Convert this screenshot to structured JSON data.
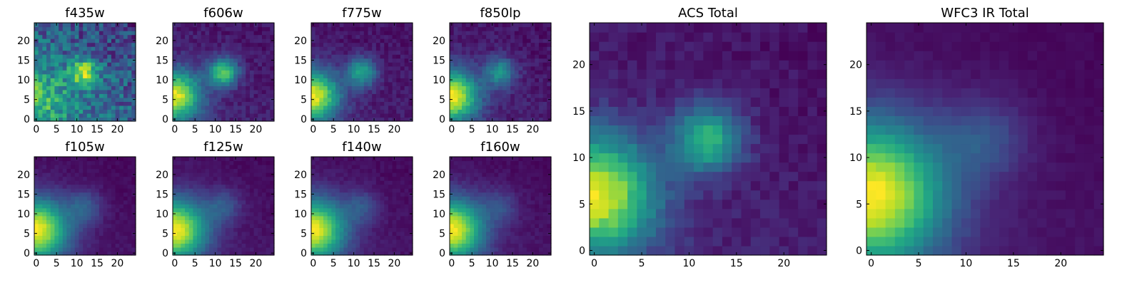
{
  "chart_data": [
    {
      "type": "heatmap",
      "title": "f435w",
      "xlim": [
        0,
        24
      ],
      "ylim": [
        0,
        24
      ],
      "xticks": [
        "0",
        "5",
        "10",
        "15",
        "20"
      ],
      "yticks": [
        "0",
        "5",
        "10",
        "15",
        "20"
      ],
      "colormap": "viridis",
      "blobs": [
        {
          "x": 12,
          "y": 12,
          "amp": 0.55,
          "sigma": 2.5
        },
        {
          "x": 0,
          "y": 6,
          "amp": 0.3,
          "sigma": 6
        }
      ],
      "background": 0.45,
      "noise": 0.18,
      "seed": 11
    },
    {
      "type": "heatmap",
      "title": "f606w",
      "xlim": [
        0,
        24
      ],
      "ylim": [
        0,
        24
      ],
      "xticks": [
        "0",
        "5",
        "10",
        "15",
        "20"
      ],
      "yticks": [
        "0",
        "5",
        "10",
        "15",
        "20"
      ],
      "colormap": "viridis",
      "blobs": [
        {
          "x": 0,
          "y": 6,
          "amp": 0.9,
          "sigma": 4.5
        },
        {
          "x": 12,
          "y": 12,
          "amp": 0.7,
          "sigma": 2.5
        }
      ],
      "background": 0.12,
      "noise": 0.06,
      "seed": 22
    },
    {
      "type": "heatmap",
      "title": "f775w",
      "xlim": [
        0,
        24
      ],
      "ylim": [
        0,
        24
      ],
      "xticks": [
        "0",
        "5",
        "10",
        "15",
        "20"
      ],
      "yticks": [
        "0",
        "5",
        "10",
        "15",
        "20"
      ],
      "colormap": "viridis",
      "blobs": [
        {
          "x": 0,
          "y": 6,
          "amp": 0.95,
          "sigma": 4.5
        },
        {
          "x": 12,
          "y": 12,
          "amp": 0.55,
          "sigma": 2.6
        }
      ],
      "background": 0.12,
      "noise": 0.06,
      "seed": 33
    },
    {
      "type": "heatmap",
      "title": "f850lp",
      "xlim": [
        0,
        24
      ],
      "ylim": [
        0,
        24
      ],
      "xticks": [
        "0",
        "5",
        "10",
        "15",
        "20"
      ],
      "yticks": [
        "0",
        "5",
        "10",
        "15",
        "20"
      ],
      "colormap": "viridis",
      "blobs": [
        {
          "x": 0,
          "y": 6,
          "amp": 0.95,
          "sigma": 4.5
        },
        {
          "x": 12,
          "y": 12,
          "amp": 0.45,
          "sigma": 2.6
        }
      ],
      "background": 0.12,
      "noise": 0.06,
      "seed": 44
    },
    {
      "type": "heatmap",
      "title": "f105w",
      "xlim": [
        0,
        24
      ],
      "ylim": [
        0,
        24
      ],
      "xticks": [
        "0",
        "5",
        "10",
        "15",
        "20"
      ],
      "yticks": [
        "0",
        "5",
        "10",
        "15",
        "20"
      ],
      "colormap": "viridis",
      "blobs": [
        {
          "x": 0,
          "y": 6,
          "amp": 0.95,
          "sigma": 5.5
        },
        {
          "x": 12,
          "y": 12,
          "amp": 0.25,
          "sigma": 3
        }
      ],
      "background": 0.1,
      "noise": 0.03,
      "seed": 55
    },
    {
      "type": "heatmap",
      "title": "f125w",
      "xlim": [
        0,
        24
      ],
      "ylim": [
        0,
        24
      ],
      "xticks": [
        "0",
        "5",
        "10",
        "15",
        "20"
      ],
      "yticks": [
        "0",
        "5",
        "10",
        "15",
        "20"
      ],
      "colormap": "viridis",
      "blobs": [
        {
          "x": 0,
          "y": 6,
          "amp": 0.95,
          "sigma": 5.5
        },
        {
          "x": 12,
          "y": 12,
          "amp": 0.22,
          "sigma": 3
        }
      ],
      "background": 0.1,
      "noise": 0.03,
      "seed": 66
    },
    {
      "type": "heatmap",
      "title": "f140w",
      "xlim": [
        0,
        24
      ],
      "ylim": [
        0,
        24
      ],
      "xticks": [
        "0",
        "5",
        "10",
        "15",
        "20"
      ],
      "yticks": [
        "0",
        "5",
        "10",
        "15",
        "20"
      ],
      "colormap": "viridis",
      "blobs": [
        {
          "x": 0,
          "y": 6,
          "amp": 0.95,
          "sigma": 5.5
        },
        {
          "x": 12,
          "y": 12,
          "amp": 0.2,
          "sigma": 3
        }
      ],
      "background": 0.1,
      "noise": 0.03,
      "seed": 77
    },
    {
      "type": "heatmap",
      "title": "f160w",
      "xlim": [
        0,
        24
      ],
      "ylim": [
        0,
        24
      ],
      "xticks": [
        "0",
        "5",
        "10",
        "15",
        "20"
      ],
      "yticks": [
        "0",
        "5",
        "10",
        "15",
        "20"
      ],
      "colormap": "viridis",
      "blobs": [
        {
          "x": 0,
          "y": 6,
          "amp": 0.95,
          "sigma": 5.5
        },
        {
          "x": 12,
          "y": 12,
          "amp": 0.18,
          "sigma": 3
        }
      ],
      "background": 0.1,
      "noise": 0.03,
      "seed": 88
    },
    {
      "type": "heatmap",
      "title": "ACS Total",
      "xlim": [
        0,
        24
      ],
      "ylim": [
        0,
        24
      ],
      "xticks": [
        "0",
        "5",
        "10",
        "15",
        "20"
      ],
      "yticks": [
        "0",
        "5",
        "10",
        "15",
        "20"
      ],
      "colormap": "viridis",
      "blobs": [
        {
          "x": 0,
          "y": 6,
          "amp": 0.9,
          "sigma": 4.5
        },
        {
          "x": 12,
          "y": 12,
          "amp": 0.6,
          "sigma": 2.5
        }
      ],
      "background": 0.12,
      "noise": 0.05,
      "seed": 99
    },
    {
      "type": "heatmap",
      "title": "WFC3 IR Total",
      "xlim": [
        0,
        24
      ],
      "ylim": [
        0,
        24
      ],
      "xticks": [
        "0",
        "5",
        "10",
        "15",
        "20"
      ],
      "yticks": [
        "0",
        "5",
        "10",
        "15",
        "20"
      ],
      "colormap": "viridis",
      "blobs": [
        {
          "x": 0,
          "y": 6,
          "amp": 0.95,
          "sigma": 5.5
        },
        {
          "x": 12,
          "y": 12,
          "amp": 0.2,
          "sigma": 3
        }
      ],
      "background": 0.1,
      "noise": 0.02,
      "seed": 111
    }
  ]
}
